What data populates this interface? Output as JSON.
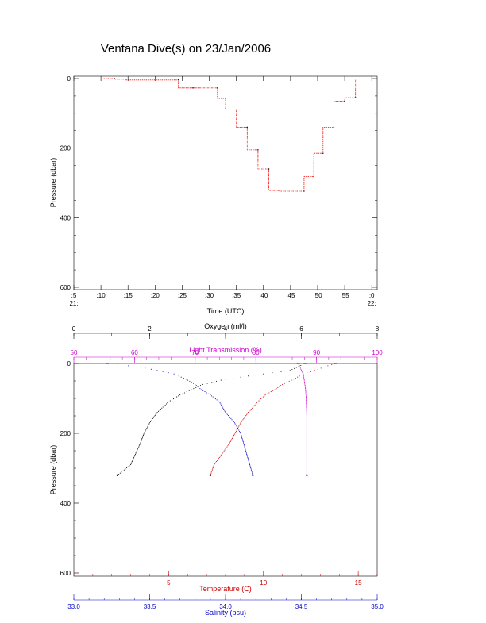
{
  "title": "Ventana Dive(s) on 23/Jan/2006",
  "colors": {
    "axis": "#000000",
    "depth_trace": "#ff0000",
    "temperature": "#cc0000",
    "salinity": "#0000cc",
    "light_transmission": "#cc00cc",
    "oxygen": "#000000"
  },
  "chart_data": [
    {
      "type": "line",
      "title": "Ventana Dive(s) on 23/Jan/2006",
      "xlabel": "Time (UTC)",
      "ylabel": "Pressure (dbar)",
      "xlim": [
        5,
        61
      ],
      "ylim": [
        600,
        0
      ],
      "x_ticks": [
        {
          "value": 5,
          "label": ":5",
          "sub": "21:"
        },
        {
          "value": 10,
          "label": ":10",
          "sub": ""
        },
        {
          "value": 15,
          "label": ":15",
          "sub": ""
        },
        {
          "value": 20,
          "label": ":20",
          "sub": ""
        },
        {
          "value": 25,
          "label": ":25",
          "sub": ""
        },
        {
          "value": 30,
          "label": ":30",
          "sub": ""
        },
        {
          "value": 35,
          "label": ":35",
          "sub": ""
        },
        {
          "value": 40,
          "label": ":40",
          "sub": ""
        },
        {
          "value": 45,
          "label": ":45",
          "sub": ""
        },
        {
          "value": 50,
          "label": ":50",
          "sub": ""
        },
        {
          "value": 55,
          "label": ":55",
          "sub": ""
        },
        {
          "value": 60,
          "label": ":0",
          "sub": "22:"
        }
      ],
      "y_ticks": [
        {
          "value": 0,
          "label": "0"
        },
        {
          "value": 200,
          "label": "200"
        },
        {
          "value": 400,
          "label": "400"
        },
        {
          "value": 600,
          "label": "600"
        }
      ],
      "series": [
        {
          "x": [
            10.5,
            12.5,
            12.5,
            14.5,
            14.5,
            24.3,
            24.3,
            27.0,
            27.0,
            31.5,
            31.5,
            33.0,
            33.0,
            35.0,
            35.0,
            37.0,
            37.0,
            39.0,
            39.0,
            41.0,
            41.0,
            43.0,
            43.0,
            47.5,
            47.5,
            49.3,
            49.3,
            51.0,
            51.0,
            53.0,
            53.0,
            55.0,
            55.0,
            57.0,
            57.0
          ],
          "y": [
            0,
            0,
            2,
            2,
            4,
            4,
            27,
            27,
            27,
            27,
            57,
            57,
            90,
            90,
            140,
            140,
            205,
            205,
            260,
            260,
            322,
            322,
            324,
            324,
            282,
            282,
            215,
            215,
            140,
            140,
            65,
            65,
            55,
            55,
            0
          ]
        }
      ]
    },
    {
      "type": "scatter",
      "ylabel": "Pressure (dbar)",
      "ylim": [
        600,
        0
      ],
      "y_ticks": [
        {
          "value": 0,
          "label": "0"
        },
        {
          "value": 200,
          "label": "200"
        },
        {
          "value": 400,
          "label": "400"
        },
        {
          "value": 600,
          "label": "600"
        }
      ],
      "axes": [
        {
          "key": "oxygen",
          "label": "Oxygen (ml/l)",
          "position": "top",
          "lim": [
            0,
            8
          ],
          "ticks": [
            0,
            2,
            4,
            6,
            8
          ]
        },
        {
          "key": "light_transmission",
          "label": "Light Transmission (%)",
          "position": "top",
          "lim": [
            50,
            100
          ],
          "ticks": [
            50,
            60,
            70,
            80,
            90,
            100
          ]
        },
        {
          "key": "temperature",
          "label": "Temperature (C)",
          "position": "bottom",
          "lim": [
            0,
            16
          ],
          "ticks": [
            5,
            10,
            15
          ]
        },
        {
          "key": "salinity",
          "label": "Salinity (psu)",
          "position": "bottom",
          "lim": [
            33.0,
            35.0
          ],
          "ticks": [
            33.0,
            33.5,
            34.0,
            34.5,
            35.0
          ]
        }
      ],
      "series": [
        {
          "key": "oxygen",
          "pressure": [
            0,
            20,
            30,
            45,
            60,
            75,
            90,
            110,
            140,
            170,
            200,
            230,
            260,
            290,
            320
          ],
          "values": [
            6.1,
            5.7,
            5.0,
            4.0,
            3.4,
            3.1,
            2.8,
            2.5,
            2.2,
            2.0,
            1.85,
            1.75,
            1.62,
            1.5,
            1.15
          ]
        },
        {
          "key": "light_transmission",
          "pressure": [
            0,
            10,
            20,
            30,
            50,
            75,
            100,
            150,
            200,
            250,
            300,
            320
          ],
          "values": [
            87.0,
            87.3,
            87.5,
            87.8,
            88.0,
            88.2,
            88.3,
            88.4,
            88.4,
            88.4,
            88.4,
            88.4
          ]
        },
        {
          "key": "temperature",
          "pressure": [
            0,
            10,
            20,
            30,
            45,
            60,
            75,
            90,
            110,
            140,
            170,
            200,
            230,
            260,
            290,
            320
          ],
          "values": [
            13.8,
            13.2,
            12.7,
            12.1,
            11.6,
            11.0,
            10.6,
            10.1,
            9.7,
            9.2,
            8.8,
            8.5,
            8.2,
            7.8,
            7.4,
            7.2
          ]
        },
        {
          "key": "salinity",
          "pressure": [
            0,
            10,
            20,
            30,
            45,
            60,
            75,
            90,
            110,
            140,
            170,
            200,
            230,
            260,
            290,
            320
          ],
          "values": [
            33.22,
            33.43,
            33.55,
            33.66,
            33.74,
            33.8,
            33.84,
            33.9,
            33.96,
            34.0,
            34.06,
            34.1,
            34.12,
            34.14,
            34.16,
            34.18
          ]
        }
      ]
    }
  ]
}
